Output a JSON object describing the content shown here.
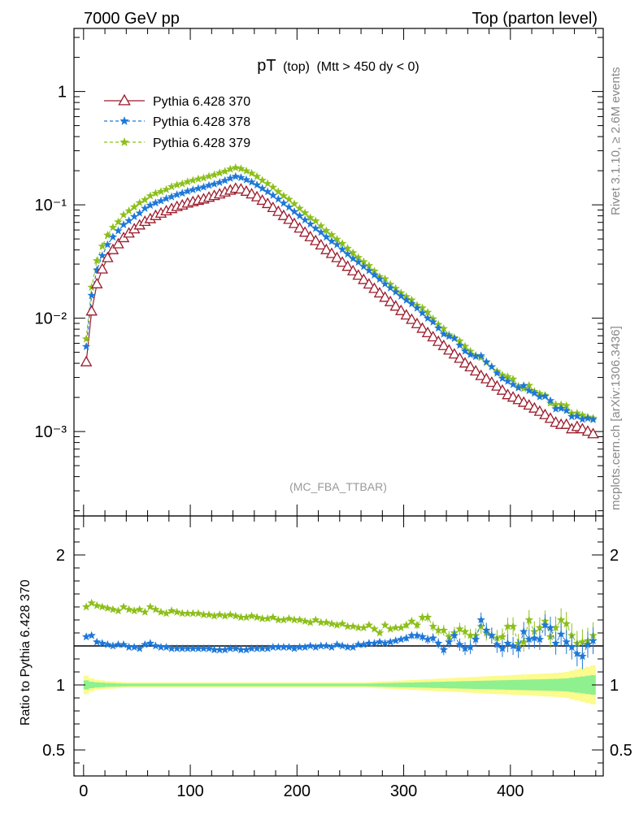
{
  "header": {
    "left": "7000 GeV pp",
    "right": "Top (parton level)"
  },
  "side_labels": {
    "rivet": "Rivet 3.1.10, ≥ 2.6M events",
    "mcplots": "mcplots.cern.ch [arXiv:1306.3436]"
  },
  "colors": {
    "ref": "#9b1b2b",
    "s378": "#1e78d8",
    "s379": "#8cbf1a",
    "band_outer": "#fbfb8e",
    "band_inner": "#8ff08f"
  },
  "chart_data": [
    {
      "type": "line",
      "title_main": "pT",
      "title_sub": "(top)",
      "title_cond": "(Mtt > 450 dy < 0)",
      "annotation": "(MC_FBA_TTBAR)",
      "xlabel": "",
      "ylabel": "",
      "xlim": [
        -9,
        487
      ],
      "ylim": [
        0.00018,
        3.6
      ],
      "yscale": "log",
      "legend_position": "top-left",
      "y_tick_labels": [
        "10⁻³",
        "10⁻²",
        "10⁻¹",
        "1"
      ],
      "series": [
        {
          "name": "Pythia 6.428 370",
          "color_key": "ref",
          "marker": "open-triangle"
        },
        {
          "name": "Pythia 6.428 378",
          "color_key": "s378",
          "marker": "star"
        },
        {
          "name": "Pythia 6.428 379",
          "color_key": "s379",
          "marker": "star"
        }
      ],
      "ref_points": [
        [
          2.5,
          0.0041
        ],
        [
          7.5,
          0.0115
        ],
        [
          12.5,
          0.02
        ],
        [
          17.5,
          0.027
        ],
        [
          22.5,
          0.034
        ],
        [
          27.5,
          0.04
        ],
        [
          32.5,
          0.045
        ],
        [
          37.5,
          0.051
        ],
        [
          42.5,
          0.056
        ],
        [
          47.5,
          0.061
        ],
        [
          52.5,
          0.066
        ],
        [
          57.5,
          0.071
        ],
        [
          62.5,
          0.075
        ],
        [
          67.5,
          0.08
        ],
        [
          72.5,
          0.084
        ],
        [
          77.5,
          0.088
        ],
        [
          82.5,
          0.092
        ],
        [
          87.5,
          0.096
        ],
        [
          92.5,
          0.099
        ],
        [
          97.5,
          0.103
        ],
        [
          102.5,
          0.106
        ],
        [
          107.5,
          0.109
        ],
        [
          112.5,
          0.112
        ],
        [
          117.5,
          0.116
        ],
        [
          122.5,
          0.12
        ],
        [
          127.5,
          0.124
        ],
        [
          132.5,
          0.129
        ],
        [
          137.5,
          0.134
        ],
        [
          142.5,
          0.139
        ],
        [
          147.5,
          0.137
        ],
        [
          152.5,
          0.131
        ],
        [
          157.5,
          0.124
        ],
        [
          162.5,
          0.117
        ],
        [
          167.5,
          0.109
        ],
        [
          172.5,
          0.102
        ],
        [
          177.5,
          0.094
        ],
        [
          182.5,
          0.087
        ],
        [
          187.5,
          0.08
        ],
        [
          192.5,
          0.074
        ],
        [
          197.5,
          0.068
        ],
        [
          202.5,
          0.062
        ],
        [
          207.5,
          0.057
        ],
        [
          212.5,
          0.052
        ],
        [
          217.5,
          0.048
        ],
        [
          222.5,
          0.044
        ],
        [
          227.5,
          0.04
        ],
        [
          232.5,
          0.037
        ],
        [
          237.5,
          0.034
        ],
        [
          242.5,
          0.031
        ],
        [
          247.5,
          0.0285
        ],
        [
          252.5,
          0.026
        ],
        [
          257.5,
          0.0238
        ],
        [
          262.5,
          0.0218
        ],
        [
          267.5,
          0.0199
        ],
        [
          272.5,
          0.0182
        ],
        [
          277.5,
          0.0166
        ],
        [
          282.5,
          0.0152
        ],
        [
          287.5,
          0.0139
        ],
        [
          292.5,
          0.0127
        ],
        [
          297.5,
          0.0116
        ],
        [
          302.5,
          0.0106
        ],
        [
          307.5,
          0.0097
        ],
        [
          312.5,
          0.0089
        ],
        [
          317.5,
          0.0081
        ],
        [
          322.5,
          0.0074
        ],
        [
          327.5,
          0.0068
        ],
        [
          332.5,
          0.0062
        ],
        [
          337.5,
          0.0057
        ],
        [
          342.5,
          0.0052
        ],
        [
          347.5,
          0.0048
        ],
        [
          352.5,
          0.0044
        ],
        [
          357.5,
          0.004
        ],
        [
          362.5,
          0.0037
        ],
        [
          367.5,
          0.0034
        ],
        [
          372.5,
          0.0031
        ],
        [
          377.5,
          0.0029
        ],
        [
          382.5,
          0.0027
        ],
        [
          387.5,
          0.0025
        ],
        [
          392.5,
          0.0023
        ],
        [
          397.5,
          0.0021
        ],
        [
          402.5,
          0.002
        ],
        [
          407.5,
          0.0019
        ],
        [
          412.5,
          0.0018
        ],
        [
          417.5,
          0.0017
        ],
        [
          422.5,
          0.0016
        ],
        [
          427.5,
          0.0015
        ],
        [
          432.5,
          0.0014
        ],
        [
          437.5,
          0.0013
        ],
        [
          442.5,
          0.0012
        ],
        [
          447.5,
          0.00115
        ],
        [
          452.5,
          0.00115
        ],
        [
          457.5,
          0.00105
        ],
        [
          462.5,
          0.0011
        ],
        [
          467.5,
          0.00105
        ],
        [
          472.5,
          0.001
        ],
        [
          477.5,
          0.00095
        ]
      ],
      "ratio_378": [
        1.37,
        1.38,
        1.33,
        1.32,
        1.31,
        1.3,
        1.31,
        1.31,
        1.29,
        1.29,
        1.28,
        1.31,
        1.32,
        1.3,
        1.29,
        1.29,
        1.28,
        1.28,
        1.28,
        1.28,
        1.28,
        1.28,
        1.28,
        1.28,
        1.27,
        1.27,
        1.27,
        1.28,
        1.28,
        1.27,
        1.27,
        1.28,
        1.28,
        1.28,
        1.28,
        1.29,
        1.29,
        1.29,
        1.29,
        1.28,
        1.29,
        1.29,
        1.3,
        1.29,
        1.3,
        1.3,
        1.29,
        1.31,
        1.3,
        1.29,
        1.29,
        1.31,
        1.31,
        1.32,
        1.32,
        1.33,
        1.32,
        1.33,
        1.34,
        1.35,
        1.36,
        1.38,
        1.38,
        1.37,
        1.35,
        1.36,
        1.32,
        1.27,
        1.33,
        1.38,
        1.31,
        1.28,
        1.29,
        1.35,
        1.5,
        1.42,
        1.38,
        1.31,
        1.28,
        1.32,
        1.3,
        1.28,
        1.41,
        1.35,
        1.36,
        1.35,
        1.46,
        1.44,
        1.32,
        1.39,
        1.33,
        1.29,
        1.24,
        1.22,
        1.31,
        1.34
      ],
      "ratio_379": [
        1.6,
        1.63,
        1.61,
        1.6,
        1.59,
        1.58,
        1.57,
        1.6,
        1.58,
        1.57,
        1.58,
        1.56,
        1.6,
        1.58,
        1.56,
        1.55,
        1.57,
        1.56,
        1.55,
        1.55,
        1.55,
        1.55,
        1.54,
        1.54,
        1.53,
        1.54,
        1.53,
        1.54,
        1.53,
        1.52,
        1.52,
        1.53,
        1.52,
        1.51,
        1.51,
        1.52,
        1.5,
        1.5,
        1.51,
        1.5,
        1.5,
        1.49,
        1.48,
        1.5,
        1.48,
        1.48,
        1.47,
        1.46,
        1.47,
        1.45,
        1.45,
        1.44,
        1.44,
        1.46,
        1.43,
        1.4,
        1.46,
        1.43,
        1.44,
        1.44,
        1.46,
        1.49,
        1.46,
        1.52,
        1.52,
        1.45,
        1.42,
        1.42,
        1.37,
        1.4,
        1.43,
        1.41,
        1.38,
        1.38,
        1.45,
        1.4,
        1.38,
        1.36,
        1.37,
        1.45,
        1.45,
        1.32,
        1.33,
        1.5,
        1.41,
        1.44,
        1.49,
        1.37,
        1.44,
        1.5,
        1.47,
        1.38,
        1.32,
        1.33,
        1.34,
        1.38
      ],
      "band_outer_half_width": [
        0.07,
        0.05,
        0.04,
        0.035,
        0.03,
        0.028,
        0.025,
        0.022,
        0.02,
        0.02,
        0.02,
        0.02,
        0.02,
        0.02,
        0.02,
        0.02,
        0.02,
        0.02,
        0.02,
        0.02,
        0.02,
        0.02,
        0.02,
        0.02,
        0.02,
        0.02,
        0.02,
        0.02,
        0.02,
        0.02,
        0.02,
        0.02,
        0.02,
        0.02,
        0.02,
        0.02,
        0.02,
        0.02,
        0.02,
        0.02,
        0.02,
        0.02,
        0.02,
        0.02,
        0.02,
        0.02,
        0.02,
        0.02,
        0.02,
        0.02,
        0.02,
        0.02,
        0.02,
        0.022,
        0.024,
        0.026,
        0.028,
        0.03,
        0.032,
        0.034,
        0.036,
        0.038,
        0.04,
        0.042,
        0.044,
        0.046,
        0.048,
        0.05,
        0.052,
        0.054,
        0.056,
        0.058,
        0.06,
        0.062,
        0.064,
        0.066,
        0.068,
        0.07,
        0.072,
        0.074,
        0.076,
        0.078,
        0.08,
        0.082,
        0.084,
        0.086,
        0.088,
        0.09,
        0.092,
        0.095,
        0.1,
        0.11,
        0.12,
        0.13,
        0.14,
        0.15
      ],
      "band_inner_half_width": [
        0.035,
        0.025,
        0.02,
        0.018,
        0.015,
        0.014,
        0.012,
        0.011,
        0.01,
        0.01,
        0.01,
        0.01,
        0.01,
        0.01,
        0.01,
        0.01,
        0.01,
        0.01,
        0.01,
        0.01,
        0.01,
        0.01,
        0.01,
        0.01,
        0.01,
        0.01,
        0.01,
        0.01,
        0.01,
        0.01,
        0.01,
        0.01,
        0.01,
        0.01,
        0.01,
        0.01,
        0.01,
        0.01,
        0.01,
        0.01,
        0.01,
        0.01,
        0.01,
        0.01,
        0.01,
        0.01,
        0.01,
        0.01,
        0.01,
        0.01,
        0.01,
        0.01,
        0.01,
        0.011,
        0.012,
        0.013,
        0.014,
        0.015,
        0.016,
        0.017,
        0.018,
        0.019,
        0.02,
        0.021,
        0.022,
        0.023,
        0.024,
        0.025,
        0.026,
        0.027,
        0.028,
        0.029,
        0.03,
        0.031,
        0.032,
        0.033,
        0.034,
        0.035,
        0.036,
        0.037,
        0.038,
        0.039,
        0.04,
        0.041,
        0.042,
        0.043,
        0.044,
        0.045,
        0.046,
        0.048,
        0.05,
        0.055,
        0.06,
        0.065,
        0.07,
        0.075
      ]
    },
    {
      "type": "line",
      "title": "",
      "xlabel": "",
      "ylabel": "Ratio to Pythia 6.428 370",
      "xlim": [
        -9,
        487
      ],
      "ylim": [
        0.3,
        2.3
      ],
      "x_tick_labels": [
        "0",
        "100",
        "200",
        "300",
        "400"
      ],
      "y_tick_labels": [
        "0.5",
        "1",
        "2"
      ]
    }
  ]
}
